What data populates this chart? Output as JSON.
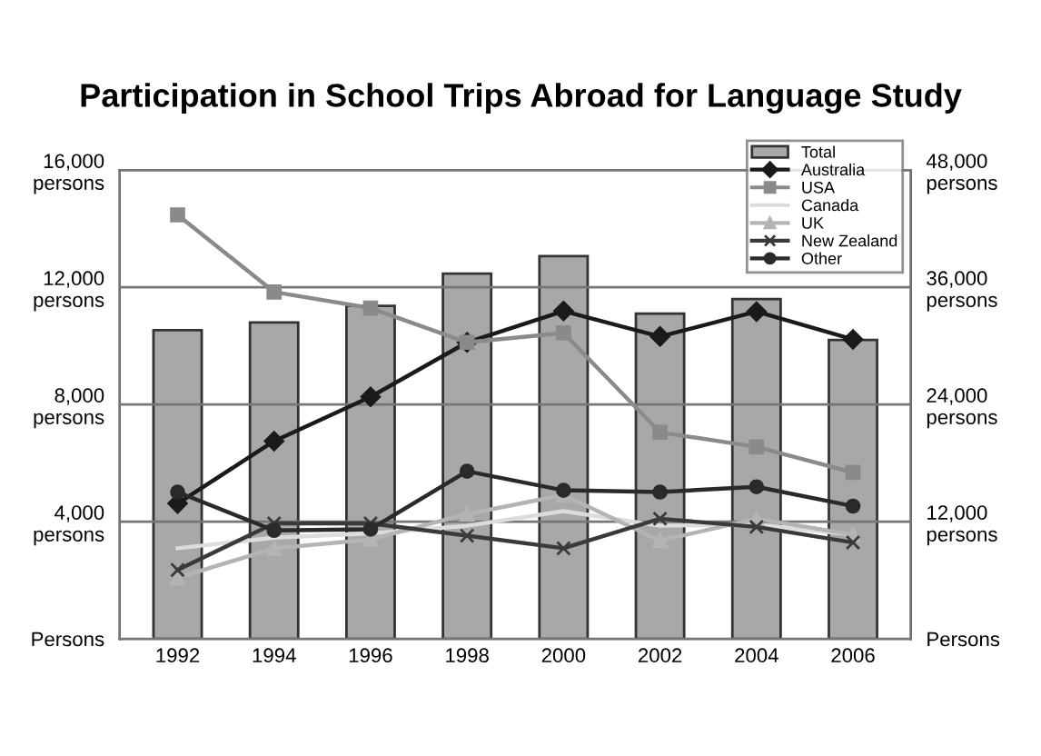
{
  "chart_data": {
    "type": "line",
    "title": "Participation in School Trips Abroad for Language Study",
    "categories": [
      "1992",
      "1994",
      "1996",
      "1998",
      "2000",
      "2002",
      "2004",
      "2006"
    ],
    "series": [
      {
        "name": "Total",
        "type": "bar",
        "axis": "y2",
        "color": "#a8a8a8",
        "values": [
          31600,
          32400,
          34100,
          37400,
          39200,
          33300,
          34800,
          30600
        ]
      },
      {
        "name": "Australia",
        "color": "#1a1a1a",
        "marker": "diamond",
        "values": [
          4620,
          6750,
          8260,
          10120,
          11190,
          10320,
          11170,
          10220
        ]
      },
      {
        "name": "USA",
        "color": "#8a8a8a",
        "marker": "square",
        "values": [
          14470,
          11840,
          11290,
          10120,
          10440,
          7050,
          6550,
          5680
        ]
      },
      {
        "name": "Canada",
        "color": "#dcdcdc",
        "marker": "none",
        "values": [
          3090,
          3450,
          3600,
          3860,
          4360,
          3860,
          3900,
          3560
        ]
      },
      {
        "name": "UK",
        "color": "#b4b4b4",
        "marker": "triangle",
        "values": [
          2080,
          3090,
          3390,
          4260,
          4910,
          3350,
          4100,
          3560
        ]
      },
      {
        "name": "New Zealand",
        "color": "#3a3a3a",
        "marker": "cross",
        "values": [
          2350,
          3940,
          3940,
          3520,
          3090,
          4100,
          3820,
          3290
        ]
      },
      {
        "name": "Other",
        "color": "#2a2a2a",
        "marker": "circle",
        "values": [
          5010,
          3700,
          3740,
          5720,
          5070,
          5010,
          5190,
          4530
        ]
      }
    ],
    "ylim": [
      0,
      16000
    ],
    "yticks": [
      {
        "value": 0,
        "label": "Persons"
      },
      {
        "value": 4000,
        "label": "4,000\npersons"
      },
      {
        "value": 8000,
        "label": "8,000\npersons"
      },
      {
        "value": 12000,
        "label": "12,000\npersons"
      },
      {
        "value": 16000,
        "label": "16,000\npersons"
      }
    ],
    "y2lim": [
      0,
      48000
    ],
    "y2ticks": [
      {
        "value": 0,
        "label": "Persons"
      },
      {
        "value": 12000,
        "label": "12,000\npersons"
      },
      {
        "value": 24000,
        "label": "24,000\npersons"
      },
      {
        "value": 36000,
        "label": "36,000\npersons"
      },
      {
        "value": 48000,
        "label": "48,000\npersons"
      }
    ],
    "grid": "y",
    "legend": "top right",
    "line_style": "solid"
  }
}
